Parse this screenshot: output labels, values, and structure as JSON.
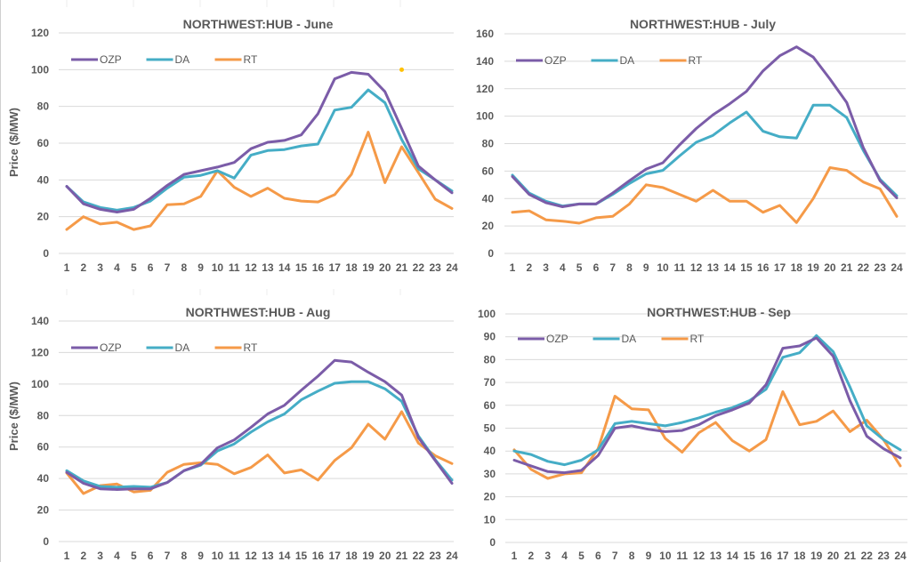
{
  "colors": {
    "OZP": "#7b5ca8",
    "DA": "#45adc6",
    "RT": "#f59a48",
    "annotation_dot": "#ffc000"
  },
  "chart_data": [
    {
      "type": "line",
      "title": "NORTHWEST:HUB - June",
      "xlabel": "",
      "ylabel": "Price ($/MW)",
      "x": [
        1,
        2,
        3,
        4,
        5,
        6,
        7,
        8,
        9,
        10,
        11,
        12,
        13,
        14,
        15,
        16,
        17,
        18,
        19,
        20,
        21,
        22,
        23,
        24
      ],
      "ylim": [
        0,
        120
      ],
      "yticks": [
        0,
        20,
        40,
        60,
        80,
        100,
        120
      ],
      "grid": true,
      "legend": "top-left",
      "series": [
        {
          "name": "OZP",
          "values": [
            36.5,
            27,
            24,
            22.5,
            24,
            30,
            37,
            43,
            45,
            47,
            49.5,
            57,
            60.5,
            61.5,
            64.5,
            76,
            95,
            98.5,
            97.5,
            88,
            68,
            47.5,
            40,
            33
          ]
        },
        {
          "name": "DA",
          "values": [
            36.5,
            28,
            25,
            23.5,
            25,
            28.5,
            35.5,
            41.5,
            42.5,
            45,
            41,
            53.5,
            56,
            56.5,
            58.5,
            59.5,
            78,
            79.5,
            89,
            82,
            62,
            46,
            40,
            34
          ]
        },
        {
          "name": "RT",
          "values": [
            13,
            20,
            16,
            17,
            13,
            15,
            26.5,
            27,
            31,
            45,
            36,
            31,
            35.5,
            30,
            28.5,
            28,
            32,
            43,
            66,
            38.5,
            58,
            44,
            29.5,
            24.5
          ]
        }
      ],
      "annotations": [
        {
          "type": "dot",
          "x": 21,
          "y": 100
        }
      ]
    },
    {
      "type": "line",
      "title": "NORTHWEST:HUB - July",
      "xlabel": "",
      "ylabel": "",
      "x": [
        1,
        2,
        3,
        4,
        5,
        6,
        7,
        8,
        9,
        10,
        11,
        12,
        13,
        14,
        15,
        16,
        17,
        18,
        19,
        20,
        21,
        22,
        23,
        24
      ],
      "ylim": [
        0,
        160
      ],
      "yticks": [
        0,
        20,
        40,
        60,
        80,
        100,
        120,
        140,
        160
      ],
      "grid": true,
      "legend": "top-left",
      "series": [
        {
          "name": "OZP",
          "values": [
            56,
            43,
            37,
            34,
            36,
            36,
            44,
            53,
            61.5,
            66,
            79,
            91,
            101,
            109,
            118,
            133,
            144,
            150.5,
            143,
            127,
            110,
            77,
            53,
            40.5
          ]
        },
        {
          "name": "DA",
          "values": [
            57,
            44,
            38,
            34.5,
            36,
            36,
            43,
            51,
            58,
            60.5,
            71,
            81,
            86,
            95,
            103,
            89,
            85,
            84,
            108,
            108,
            99,
            75,
            54,
            42
          ]
        },
        {
          "name": "RT",
          "values": [
            30,
            31,
            24.5,
            23.5,
            22,
            26,
            27,
            36,
            50,
            48,
            43,
            38,
            46,
            38,
            38,
            30,
            35,
            22.5,
            40,
            62.5,
            60.5,
            52,
            47,
            27
          ]
        }
      ]
    },
    {
      "type": "line",
      "title": "NORTHWEST:HUB - Aug",
      "xlabel": "",
      "ylabel": "Price ($/MW)",
      "x": [
        1,
        2,
        3,
        4,
        5,
        6,
        7,
        8,
        9,
        10,
        11,
        12,
        13,
        14,
        15,
        16,
        17,
        18,
        19,
        20,
        21,
        22,
        23,
        24
      ],
      "ylim": [
        0,
        140
      ],
      "yticks": [
        0,
        20,
        40,
        60,
        80,
        100,
        120,
        140
      ],
      "grid": true,
      "legend": "top-left",
      "series": [
        {
          "name": "OZP",
          "values": [
            44,
            37,
            33.5,
            33,
            33.5,
            33.5,
            37.5,
            45,
            49,
            59.5,
            64.5,
            72.5,
            81,
            86.5,
            96,
            105,
            115,
            114,
            107.5,
            101.5,
            93,
            66,
            51.5,
            37
          ]
        },
        {
          "name": "DA",
          "values": [
            45,
            38.5,
            35,
            34.5,
            35,
            34.5,
            37.5,
            45,
            48.5,
            57.5,
            62,
            69.5,
            76,
            81,
            90,
            95.5,
            100.5,
            101.5,
            101.5,
            97,
            89,
            67,
            52,
            39
          ]
        },
        {
          "name": "RT",
          "values": [
            43.5,
            30.5,
            35.5,
            36.5,
            31.5,
            32.5,
            44,
            49,
            50,
            49,
            43,
            47,
            55,
            43.5,
            45.5,
            39,
            51.5,
            59.5,
            74.5,
            65,
            82.5,
            62.5,
            54.5,
            49.5
          ]
        }
      ]
    },
    {
      "type": "line",
      "title": "NORTHWEST:HUB - Sep",
      "xlabel": "",
      "ylabel": "",
      "x": [
        1,
        2,
        3,
        4,
        5,
        6,
        7,
        8,
        9,
        10,
        11,
        12,
        13,
        14,
        15,
        16,
        17,
        18,
        19,
        20,
        21,
        22,
        23,
        24
      ],
      "ylim": [
        0,
        100
      ],
      "yticks": [
        0,
        10,
        20,
        30,
        40,
        50,
        60,
        70,
        80,
        90,
        100
      ],
      "grid": true,
      "legend": "top-left",
      "series": [
        {
          "name": "OZP",
          "values": [
            36,
            33.5,
            31,
            30.5,
            31.5,
            38,
            50,
            51,
            49.5,
            48.5,
            49,
            51.5,
            55.5,
            58,
            61,
            69,
            85,
            86,
            89.5,
            81.5,
            62,
            46.5,
            41,
            37
          ]
        },
        {
          "name": "DA",
          "values": [
            40,
            38.5,
            35.5,
            34,
            36,
            40.5,
            52,
            53,
            52,
            51,
            52.5,
            54.5,
            57,
            59,
            62,
            67,
            81,
            83,
            90.5,
            83.5,
            68,
            51,
            45,
            40.5
          ]
        },
        {
          "name": "RT",
          "values": [
            40.5,
            32,
            28,
            30,
            30.5,
            41,
            64,
            58.5,
            58,
            45.5,
            39.5,
            48,
            52.5,
            44.5,
            40,
            45,
            66,
            51.5,
            53,
            57.5,
            48.5,
            53.5,
            45,
            33.5
          ]
        }
      ]
    }
  ]
}
